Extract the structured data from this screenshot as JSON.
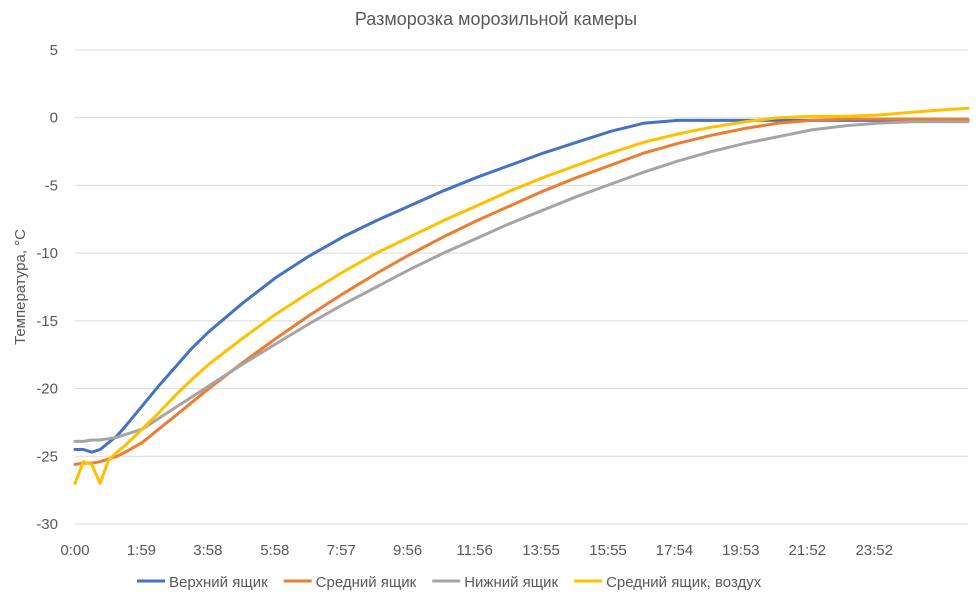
{
  "chart_data": {
    "type": "line",
    "title": "Разморозка морозильной камеры",
    "xlabel": "",
    "ylabel": "Температура, °C",
    "ylim": [
      -30,
      5
    ],
    "yticks": [
      5,
      0,
      -5,
      -10,
      -15,
      -20,
      -25,
      -30
    ],
    "xlim": [
      "0:00",
      "26:40"
    ],
    "x_tick_labels": [
      "0:00",
      "1:59",
      "3:58",
      "5:58",
      "7:57",
      "9:56",
      "11:56",
      "13:55",
      "15:55",
      "17:54",
      "19:53",
      "21:52",
      "23:52"
    ],
    "grid": "horizontal",
    "legend_position": "bottom",
    "x": [
      "0:00",
      "0:15",
      "0:30",
      "0:45",
      "1:00",
      "1:15",
      "1:30",
      "2:00",
      "2:30",
      "3:00",
      "3:30",
      "4:00",
      "5:00",
      "6:00",
      "7:00",
      "8:00",
      "9:00",
      "10:00",
      "11:00",
      "12:00",
      "13:00",
      "14:00",
      "15:00",
      "16:00",
      "17:00",
      "18:00",
      "19:00",
      "20:00",
      "21:00",
      "22:00",
      "23:00",
      "24:00",
      "25:00",
      "26:00",
      "26:40"
    ],
    "series": [
      {
        "name": "Верхний ящик",
        "color": "#4472C4",
        "values": [
          -24.5,
          -24.5,
          -24.7,
          -24.5,
          -24.0,
          -23.5,
          -22.8,
          -21.3,
          -19.8,
          -18.4,
          -17.0,
          -15.8,
          -13.7,
          -11.8,
          -10.2,
          -8.8,
          -7.6,
          -6.5,
          -5.4,
          -4.4,
          -3.5,
          -2.6,
          -1.8,
          -1.0,
          -0.4,
          -0.2,
          -0.2,
          -0.2,
          -0.2,
          -0.2,
          -0.2,
          -0.2,
          -0.2,
          -0.2,
          -0.2
        ]
      },
      {
        "name": "Средний ящик",
        "color": "#ED7D31",
        "values": [
          -25.6,
          -25.5,
          -25.5,
          -25.4,
          -25.2,
          -25.0,
          -24.7,
          -24.0,
          -23.0,
          -22.0,
          -21.0,
          -20.0,
          -18.1,
          -16.3,
          -14.6,
          -13.0,
          -11.5,
          -10.1,
          -8.8,
          -7.6,
          -6.5,
          -5.4,
          -4.4,
          -3.5,
          -2.6,
          -1.9,
          -1.3,
          -0.8,
          -0.4,
          -0.2,
          -0.1,
          -0.1,
          -0.1,
          -0.1,
          -0.1
        ]
      },
      {
        "name": "Нижний ящик",
        "color": "#A5A5A5",
        "values": [
          -23.9,
          -23.9,
          -23.8,
          -23.8,
          -23.7,
          -23.6,
          -23.4,
          -23.0,
          -22.2,
          -21.4,
          -20.6,
          -19.8,
          -18.2,
          -16.7,
          -15.2,
          -13.8,
          -12.5,
          -11.2,
          -10.0,
          -8.9,
          -7.8,
          -6.8,
          -5.8,
          -4.9,
          -4.0,
          -3.2,
          -2.5,
          -1.9,
          -1.4,
          -0.9,
          -0.6,
          -0.4,
          -0.3,
          -0.3,
          -0.3
        ]
      },
      {
        "name": "Средний ящик, воздух",
        "color": "#FFC000",
        "values": [
          -27.0,
          -25.4,
          -25.6,
          -27.0,
          -25.3,
          -24.7,
          -24.2,
          -23.0,
          -21.8,
          -20.5,
          -19.3,
          -18.2,
          -16.3,
          -14.5,
          -12.9,
          -11.4,
          -10.0,
          -8.8,
          -7.6,
          -6.5,
          -5.4,
          -4.4,
          -3.5,
          -2.6,
          -1.8,
          -1.2,
          -0.7,
          -0.3,
          0.0,
          0.1,
          0.1,
          0.2,
          0.4,
          0.6,
          0.7
        ]
      }
    ]
  }
}
